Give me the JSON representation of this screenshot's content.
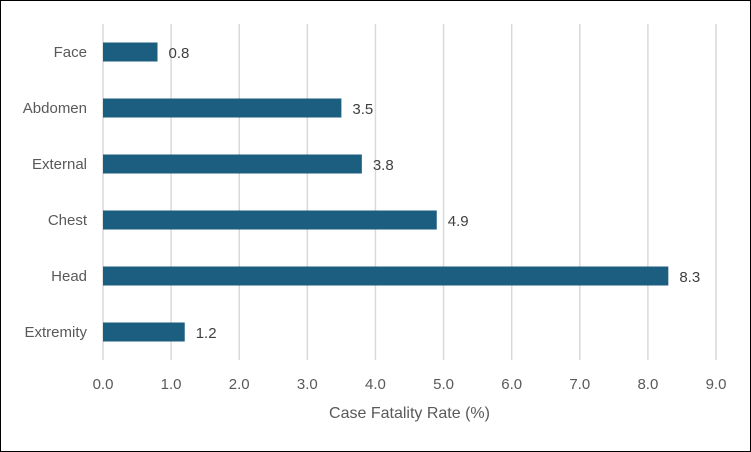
{
  "chart_data": {
    "type": "bar",
    "orientation": "horizontal",
    "categories": [
      "Face",
      "Abdomen",
      "External",
      "Chest",
      "Head",
      "Extremity"
    ],
    "values": [
      0.8,
      3.5,
      3.8,
      4.9,
      8.3,
      1.2
    ],
    "data_labels": [
      "0.8",
      "3.5",
      "3.8",
      "4.9",
      "8.3",
      "1.2"
    ],
    "xlabel": "Case Fatality Rate (%)",
    "ylabel": "",
    "title": "",
    "xlim": [
      0,
      9
    ],
    "ticks": [
      0,
      1,
      2,
      3,
      4,
      5,
      6,
      7,
      8,
      9
    ],
    "tick_labels": [
      "0.0",
      "1.0",
      "2.0",
      "3.0",
      "4.0",
      "5.0",
      "6.0",
      "7.0",
      "8.0",
      "9.0"
    ],
    "grid": true,
    "legend": "none",
    "bar_color": "#1b5e80"
  }
}
